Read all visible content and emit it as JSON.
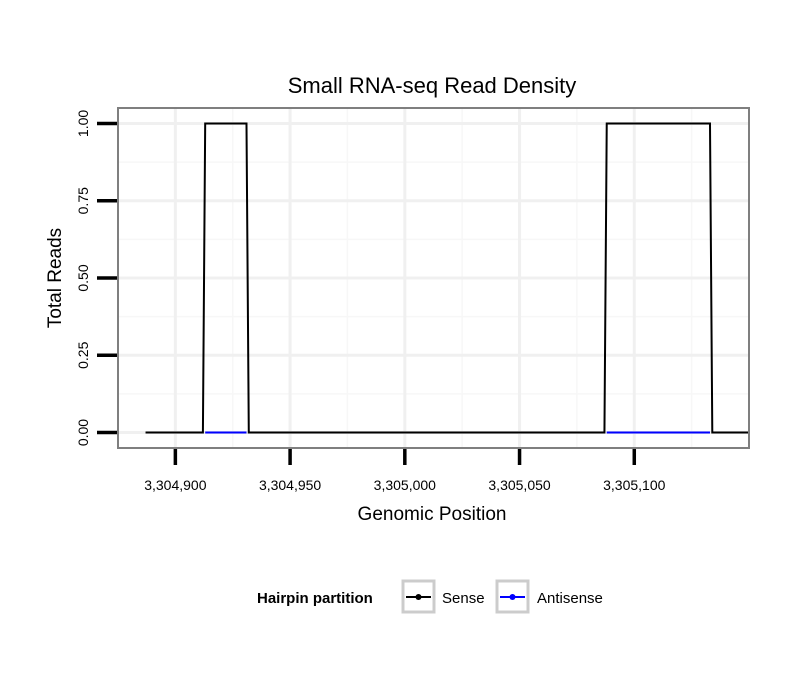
{
  "chart_data": {
    "type": "line",
    "title": "Small RNA-seq Read Density",
    "xlabel": "Genomic Position",
    "ylabel": "Total Reads",
    "xlim": [
      3304875,
      3305150
    ],
    "ylim": [
      -0.05,
      1.05
    ],
    "x_ticks": [
      3304900,
      3304950,
      3305000,
      3305050,
      3305100
    ],
    "x_tick_labels": [
      "3,304,900",
      "3,304,950",
      "3,305,000",
      "3,305,050",
      "3,305,100"
    ],
    "y_ticks": [
      0,
      0.25,
      0.5,
      0.75,
      1
    ],
    "y_tick_labels": [
      "0.00",
      "0.25",
      "0.50",
      "0.75",
      "1.00"
    ],
    "grid": true,
    "legend": {
      "title": "Hairpin partition",
      "position": "bottom"
    },
    "series": [
      {
        "name": "Sense",
        "color": "#000000",
        "x": [
          3304887,
          3304912,
          3304913,
          3304931,
          3304932,
          3305087,
          3305088,
          3305133,
          3305134,
          3305150
        ],
        "y": [
          0,
          0,
          1,
          1,
          0,
          0,
          1,
          1,
          0,
          0
        ]
      },
      {
        "name": "Antisense",
        "color": "#0000ff",
        "x": [
          3304913,
          3304931,
          3305088,
          3305133
        ],
        "y": [
          0,
          0,
          0,
          0
        ]
      }
    ]
  }
}
